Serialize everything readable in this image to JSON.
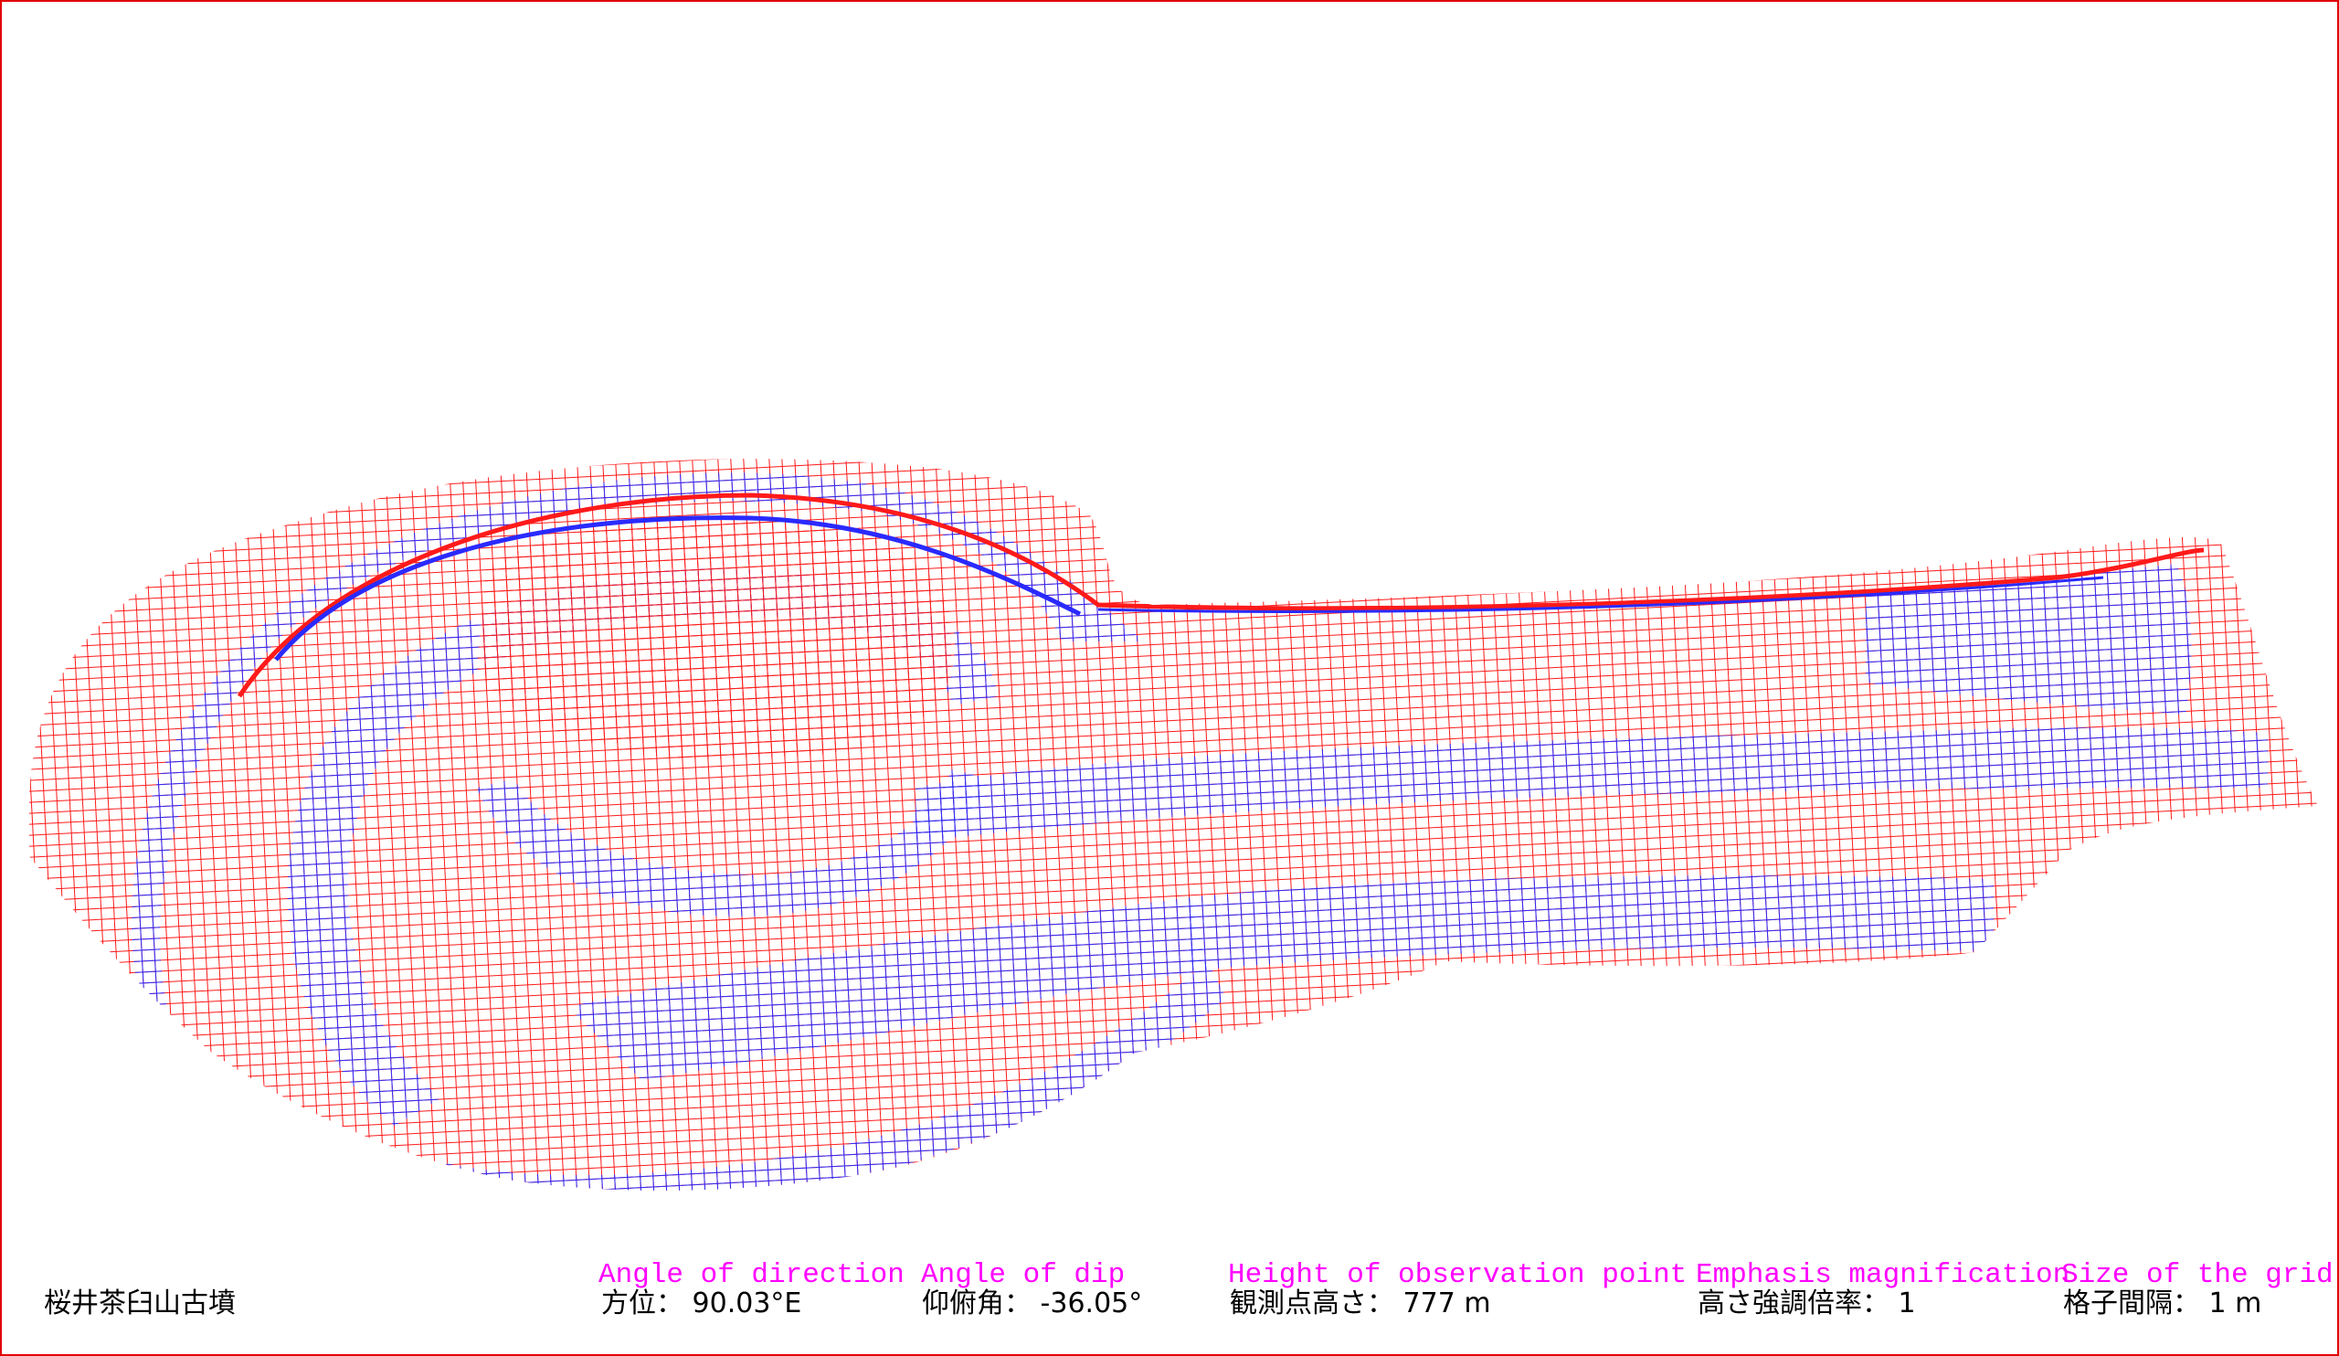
{
  "site_name": "桜井茶臼山古墳",
  "params": {
    "direction": {
      "label": "Angle of direction",
      "value": "方位：  90.03°E"
    },
    "dip": {
      "label": "Angle of dip",
      "value": "仰俯角： -36.05°"
    },
    "height": {
      "label": "Height of observation point",
      "value": "観測点高さ：  777 m"
    },
    "emphasis": {
      "label": "Emphasis magnification",
      "value": "高さ強調倍率： 1"
    },
    "grid": {
      "label": "Size of the grid",
      "value": "格子間隔： 1 m"
    }
  },
  "colors": {
    "frame": "#e00000",
    "mesh_red": "#ff1a1a",
    "mesh_blue": "#2a2aff",
    "label": "#ff00ff",
    "value": "#000000"
  },
  "icons": {
    "mesh": "wireframe-terrain"
  }
}
